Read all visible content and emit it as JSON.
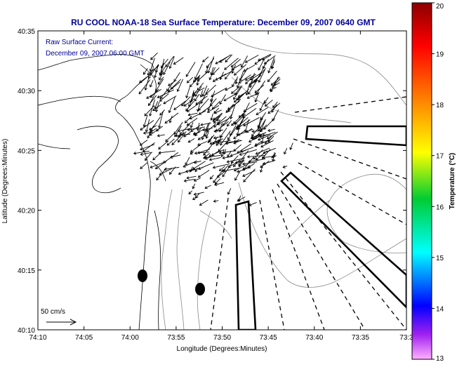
{
  "title": "RU COOL  NOAA-18  Sea Surface Temperature:  December 09, 2007 0640 GMT",
  "annotation": {
    "line1": "Raw Surface Current:",
    "line2": "December 09, 2007 06:00 GMT"
  },
  "scale_label": "50 cm/s",
  "x_axis": {
    "label": "Longitude (Degrees:Minutes)",
    "ticks": [
      "74:10",
      "74:05",
      "74:00",
      "73:55",
      "73:50",
      "73:45",
      "73:40",
      "73:35",
      "73:3"
    ]
  },
  "y_axis": {
    "label": "Latitude (Degrees:Minutes)",
    "ticks": [
      "40:35",
      "40:30",
      "40:25",
      "40:20",
      "40:15",
      "40:10"
    ]
  },
  "colorbar": {
    "label": "Temperature (°C)",
    "ticks": [
      "20",
      "19",
      "18",
      "17",
      "16",
      "15",
      "14",
      "13"
    ],
    "colors": [
      "#8b0000",
      "#ff0000",
      "#ff8800",
      "#ffff00",
      "#00cc00",
      "#00ffff",
      "#0000ff",
      "#ff44ff"
    ]
  },
  "colors": {
    "title": "#000099",
    "annotation": "#000099",
    "axes": "#000000"
  }
}
